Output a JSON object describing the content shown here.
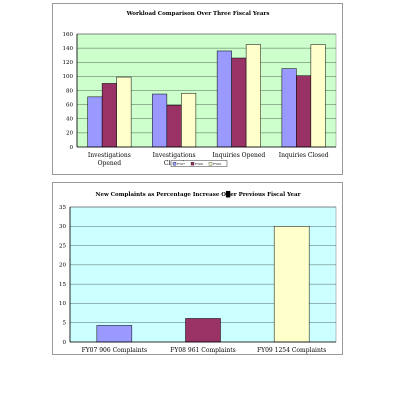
{
  "colors": {
    "plot1_bg": "#ccffcc",
    "plot2_bg": "#ccffff",
    "fy07": "#9999ff",
    "fy08": "#993366",
    "fy09": "#ffffcc",
    "axis": "#000000",
    "grid": "#000000"
  },
  "chart_data": [
    {
      "type": "bar",
      "title": "Workload Comparison Over Three Fiscal Years",
      "categories": [
        [
          "Investigations",
          "Opened"
        ],
        [
          "Investigations",
          "Closed"
        ],
        [
          "Inquiries Opened"
        ],
        [
          "Inquiries Closed"
        ]
      ],
      "series": [
        {
          "name": "FY07",
          "color": "#9999ff",
          "values": [
            71,
            75,
            136,
            111
          ]
        },
        {
          "name": "FY08",
          "color": "#993366",
          "values": [
            90,
            59,
            126,
            101
          ]
        },
        {
          "name": "FY09",
          "color": "#ffffcc",
          "values": [
            99,
            76,
            145,
            145
          ]
        }
      ],
      "ylim": [
        0,
        160
      ],
      "yticks": [
        "0",
        "20",
        "40",
        "60",
        "80",
        "100",
        "120",
        "140",
        "160"
      ],
      "grid": true,
      "legend": "bottom"
    },
    {
      "type": "bar",
      "title": "New Complaints as Percentage Increase O█er Previous Fiscal Year",
      "categories": [
        "FY07 906 Complaints",
        "FY08 961 Complaints",
        "FY09 1254 Complaints"
      ],
      "values": [
        4.3,
        6.1,
        30
      ],
      "colors": [
        "#9999ff",
        "#993366",
        "#ffffcc"
      ],
      "ylim": [
        0,
        35
      ],
      "yticks": [
        "0",
        "5",
        "10",
        "15",
        "20",
        "25",
        "30",
        "35"
      ],
      "grid": true
    }
  ]
}
